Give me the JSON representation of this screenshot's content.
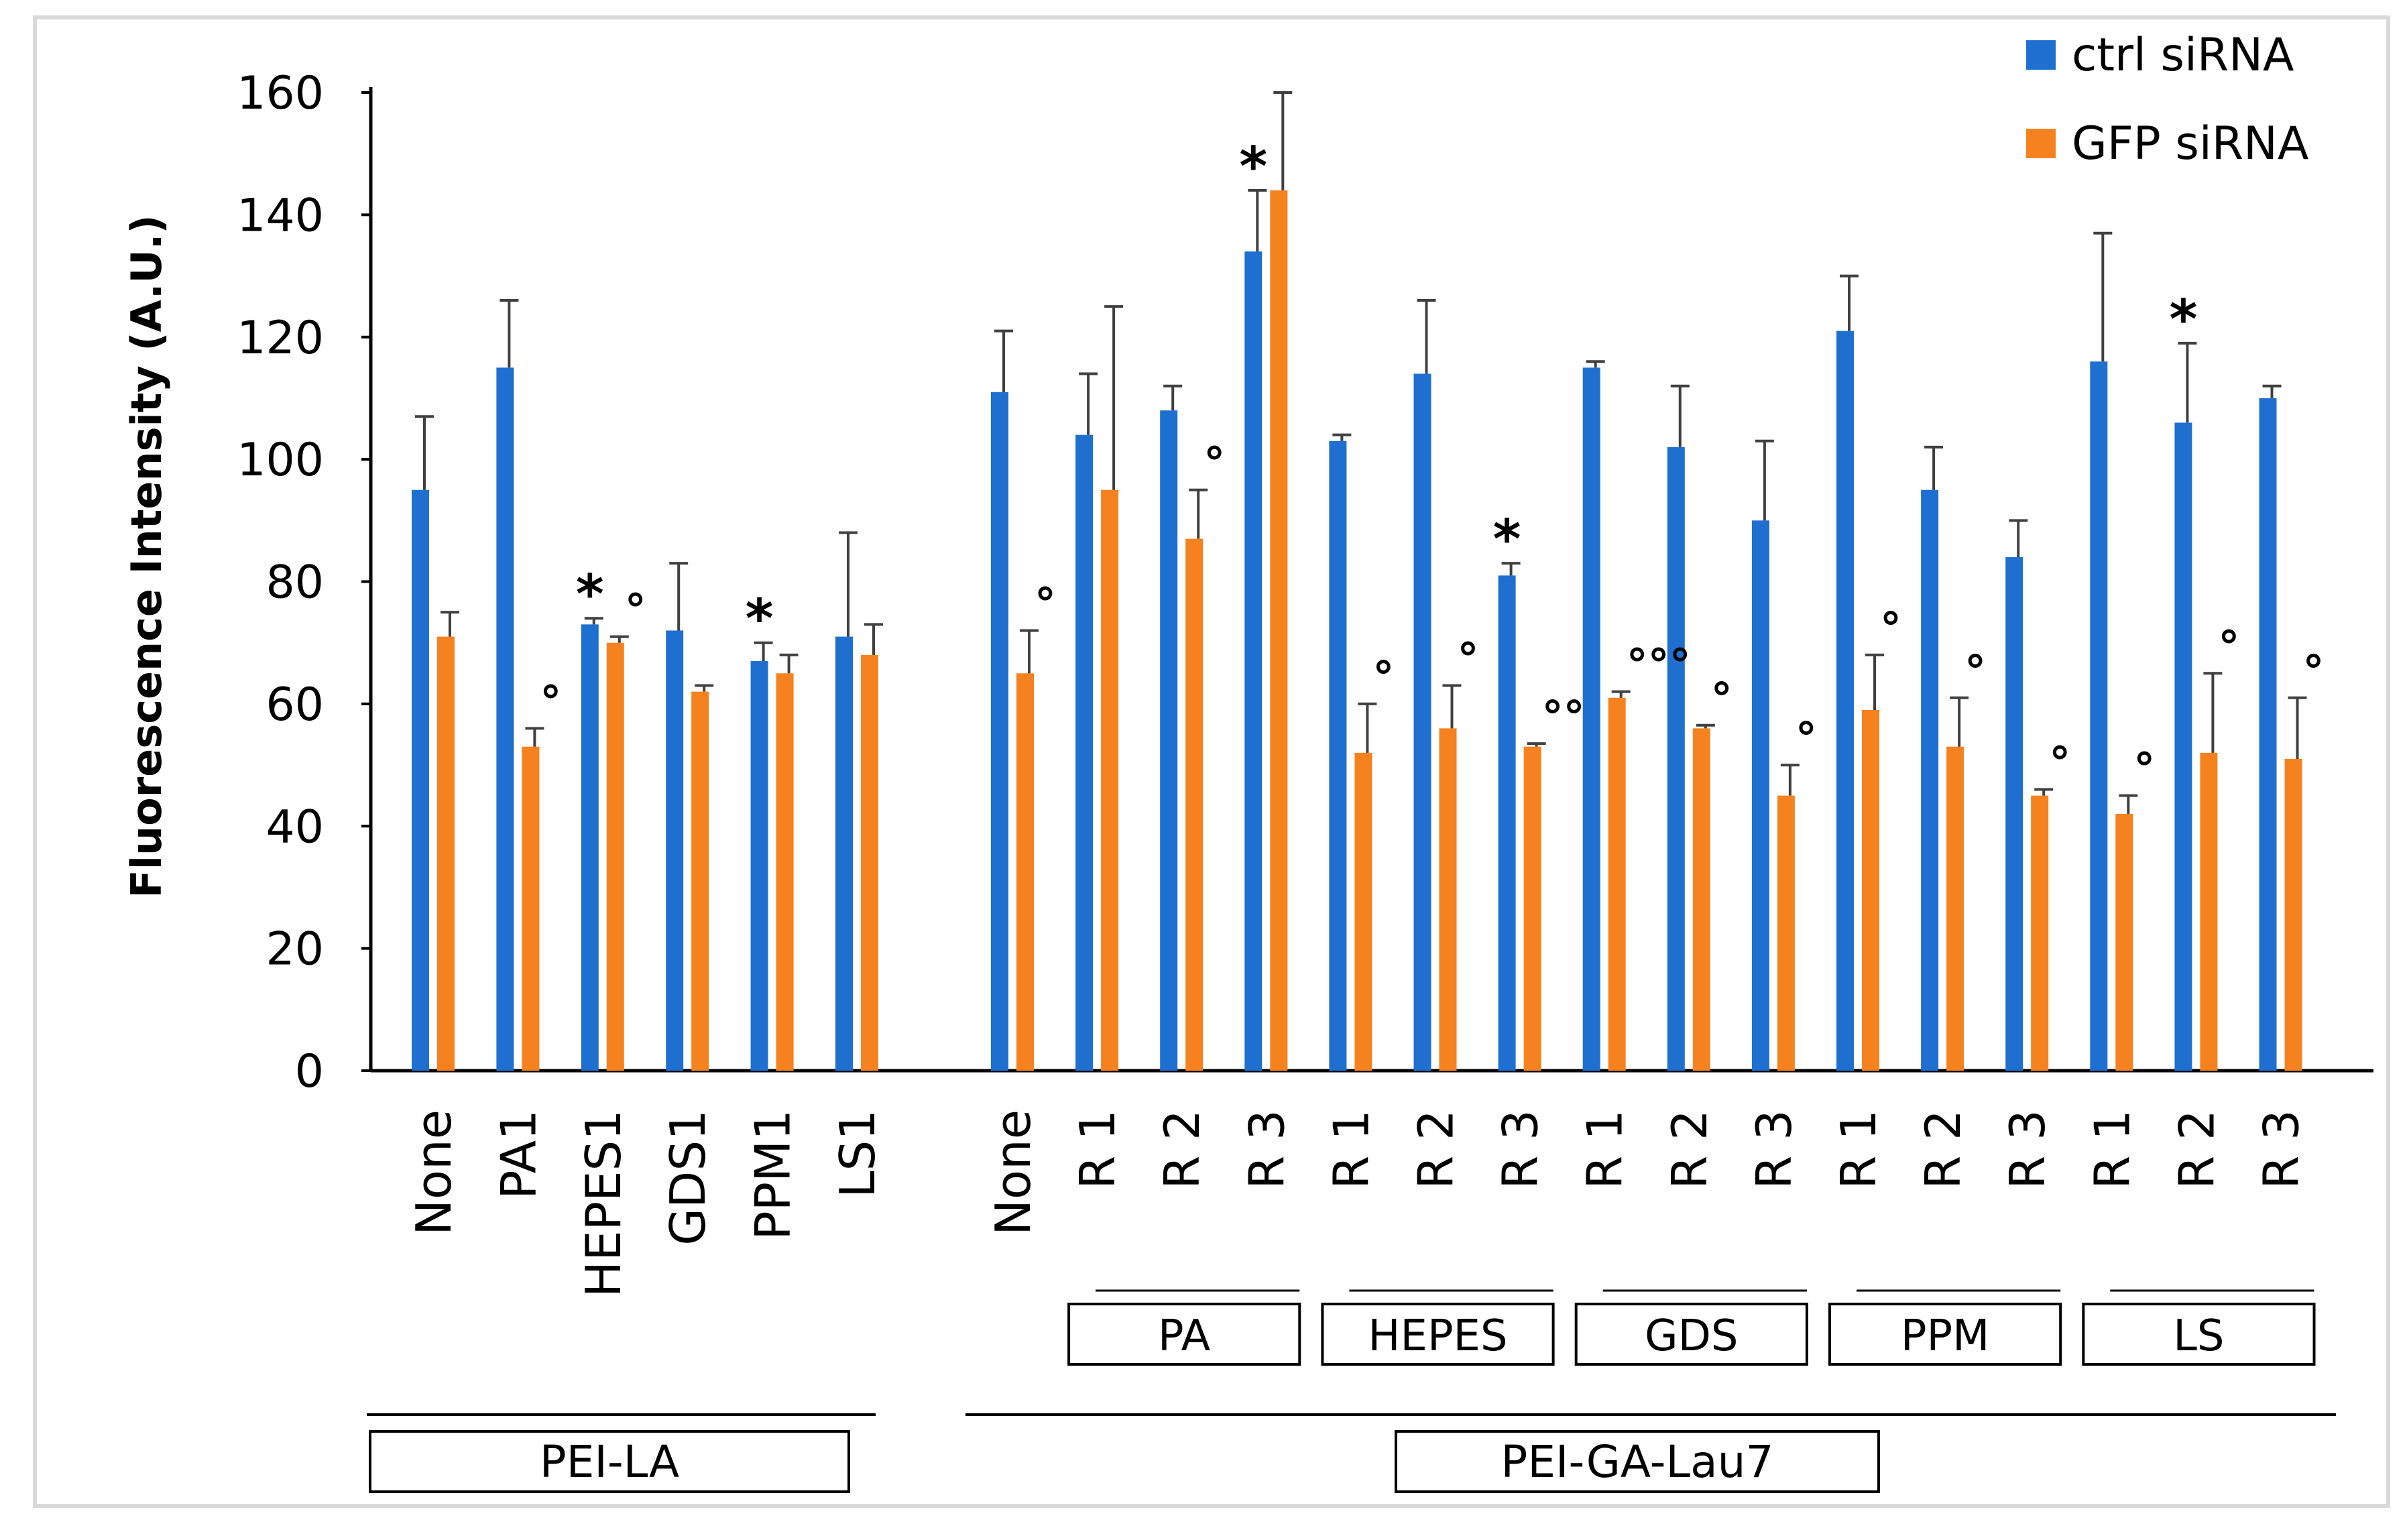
{
  "chart_data": {
    "type": "bar",
    "ylabel": "Fluorescence Intensity (A.U.)",
    "ylim": [
      0,
      160
    ],
    "yticks": [
      0,
      20,
      40,
      60,
      80,
      100,
      120,
      140,
      160
    ],
    "legend": {
      "placement": "top-right",
      "entries": [
        "ctrl siRNA",
        "GFP siRNA"
      ]
    },
    "colors": {
      "ctrl": "#1f6fd1",
      "gfp": "#f5821f",
      "axis": "#000000",
      "frame": "#d9d9d9"
    },
    "categories": [
      "None",
      "PA1",
      "HEPES1",
      "GDS1",
      "PPM1",
      "LS1",
      "None",
      "R 1",
      "R 2",
      "R 3",
      "R 1",
      "R 2",
      "R 3",
      "R 1",
      "R 2",
      "R 3",
      "R 1",
      "R 2",
      "R 3",
      "R 1",
      "R 2",
      "R 3"
    ],
    "series": [
      {
        "name": "ctrl siRNA",
        "values": [
          95,
          115,
          73,
          72,
          67,
          71,
          111,
          104,
          108,
          134,
          103,
          114,
          81,
          115,
          102,
          90,
          121,
          95,
          84,
          116,
          106,
          110
        ],
        "errors": [
          12,
          11,
          1,
          11,
          3,
          17,
          10,
          10,
          4,
          10,
          1,
          12,
          2,
          1,
          10,
          13,
          9,
          7,
          6,
          21,
          13,
          2
        ]
      },
      {
        "name": "GFP siRNA",
        "values": [
          71,
          53,
          70,
          62,
          65,
          68,
          65,
          95,
          87,
          144,
          52,
          56,
          53,
          61,
          56,
          45,
          59,
          53,
          45,
          42,
          52,
          51
        ],
        "errors": [
          4,
          3,
          1,
          1,
          3,
          5,
          7,
          30,
          8,
          16,
          8,
          7,
          0.5,
          1,
          0.5,
          5,
          9,
          8,
          1,
          3,
          13,
          10
        ]
      }
    ],
    "annotations": [
      {
        "category_index": 2,
        "series": 0,
        "text": "*"
      },
      {
        "category_index": 2,
        "series": 1,
        "text": "°"
      },
      {
        "category_index": 4,
        "series": 0,
        "text": "*"
      },
      {
        "category_index": 1,
        "series": 1,
        "text": "°"
      },
      {
        "category_index": 6,
        "series": 1,
        "text": "°"
      },
      {
        "category_index": 8,
        "series": 1,
        "text": "°"
      },
      {
        "category_index": 9,
        "series": 0,
        "text": "*"
      },
      {
        "category_index": 10,
        "series": 1,
        "text": "°"
      },
      {
        "category_index": 11,
        "series": 1,
        "text": "°"
      },
      {
        "category_index": 12,
        "series": 0,
        "text": "*"
      },
      {
        "category_index": 12,
        "series": 1,
        "text": "°°"
      },
      {
        "category_index": 13,
        "series": 1,
        "text": "°°°"
      },
      {
        "category_index": 14,
        "series": 1,
        "text": "°"
      },
      {
        "category_index": 15,
        "series": 1,
        "text": "°"
      },
      {
        "category_index": 16,
        "series": 1,
        "text": "°"
      },
      {
        "category_index": 17,
        "series": 1,
        "text": "°"
      },
      {
        "category_index": 18,
        "series": 1,
        "text": "°"
      },
      {
        "category_index": 19,
        "series": 1,
        "text": "°"
      },
      {
        "category_index": 20,
        "series": 0,
        "text": "*"
      },
      {
        "category_index": 20,
        "series": 1,
        "text": "°"
      },
      {
        "category_index": 21,
        "series": 1,
        "text": "°"
      }
    ],
    "subgroups": [
      {
        "label": "PA",
        "from": 7,
        "to": 9
      },
      {
        "label": "HEPES",
        "from": 10,
        "to": 12
      },
      {
        "label": "GDS",
        "from": 13,
        "to": 15
      },
      {
        "label": "PPM",
        "from": 16,
        "to": 18
      },
      {
        "label": "LS",
        "from": 19,
        "to": 21
      }
    ],
    "groups": [
      {
        "label": "PEI-LA",
        "from": 0,
        "to": 5
      },
      {
        "label": "PEI-GA-Lau7",
        "from": 6,
        "to": 21
      }
    ]
  }
}
